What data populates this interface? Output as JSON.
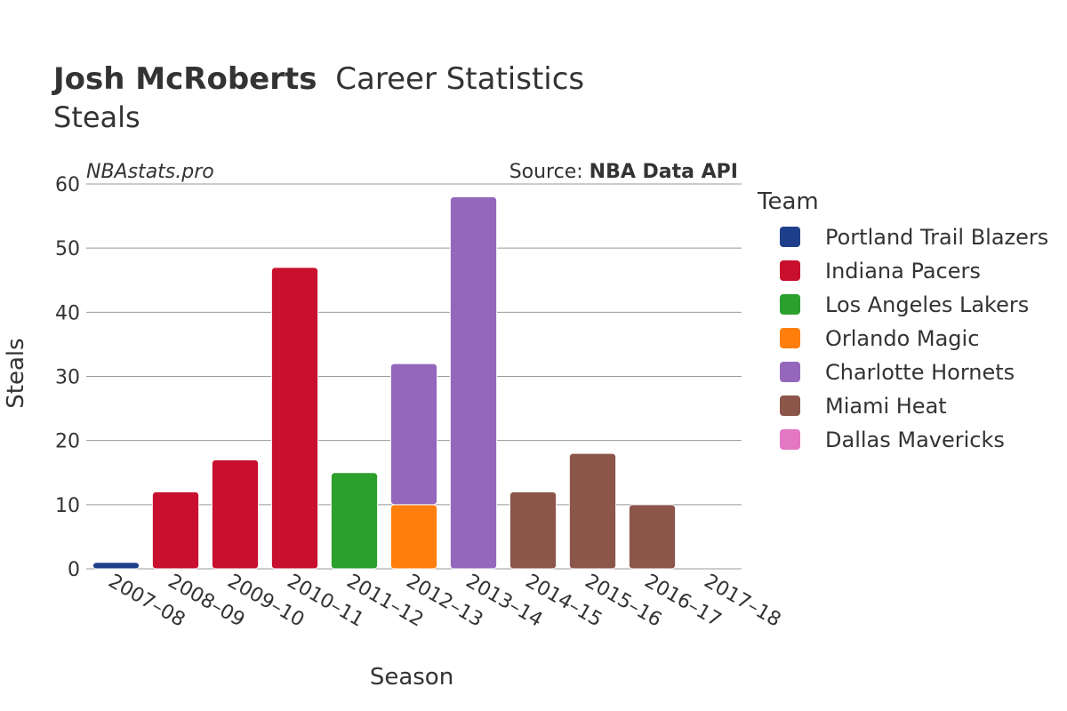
{
  "chart_data": {
    "type": "bar",
    "stacked": true,
    "title_bold": "Josh McRoberts",
    "title_rest": "Career Statistics",
    "subtitle": "Steals",
    "watermark": "NBAstats.pro",
    "source_prefix": "Source: ",
    "source_name": "NBA Data API",
    "xlabel": "Season",
    "ylabel": "Steals",
    "ylim": [
      0,
      60
    ],
    "yticks": [
      0,
      10,
      20,
      30,
      40,
      50,
      60
    ],
    "grid": true,
    "legend_title": "Team",
    "legend_position": "right",
    "categories": [
      "2007–08",
      "2008–09",
      "2009–10",
      "2010–11",
      "2011–12",
      "2012–13",
      "2013–14",
      "2014–15",
      "2015–16",
      "2016–17",
      "2017–18"
    ],
    "series": [
      {
        "name": "Portland Trail Blazers",
        "color": "#1f3f8a",
        "values": [
          1,
          0,
          0,
          0,
          0,
          0,
          0,
          0,
          0,
          0,
          0
        ]
      },
      {
        "name": "Indiana Pacers",
        "color": "#c8102e",
        "values": [
          0,
          12,
          17,
          47,
          0,
          0,
          0,
          0,
          0,
          0,
          0
        ]
      },
      {
        "name": "Los Angeles Lakers",
        "color": "#2ca02c",
        "values": [
          0,
          0,
          0,
          0,
          15,
          0,
          0,
          0,
          0,
          0,
          0
        ]
      },
      {
        "name": "Orlando Magic",
        "color": "#ff7f0e",
        "values": [
          0,
          0,
          0,
          0,
          0,
          10,
          0,
          0,
          0,
          0,
          0
        ]
      },
      {
        "name": "Charlotte Hornets",
        "color": "#9467bd",
        "values": [
          0,
          0,
          0,
          0,
          0,
          22,
          58,
          0,
          0,
          0,
          0
        ]
      },
      {
        "name": "Miami Heat",
        "color": "#8c564b",
        "values": [
          0,
          0,
          0,
          0,
          0,
          0,
          0,
          12,
          18,
          10,
          0
        ]
      },
      {
        "name": "Dallas Mavericks",
        "color": "#e377c2",
        "values": [
          0,
          0,
          0,
          0,
          0,
          0,
          0,
          0,
          0,
          0,
          0
        ]
      }
    ]
  }
}
